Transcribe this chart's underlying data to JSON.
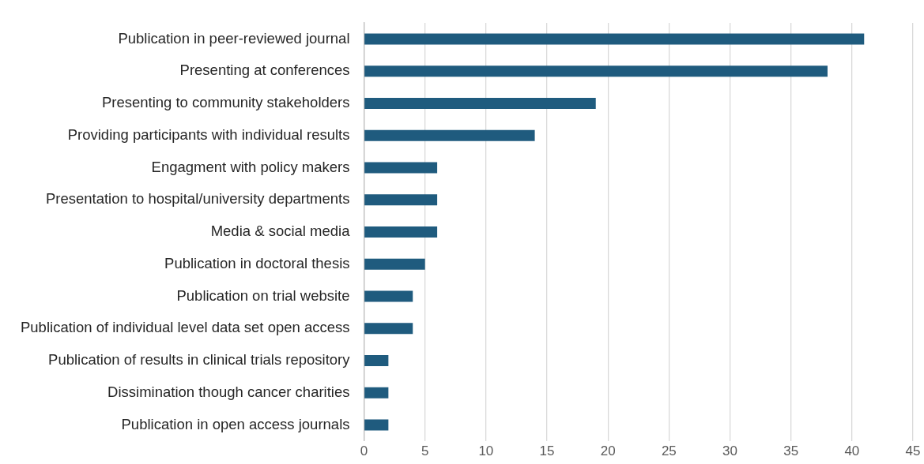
{
  "chart_data": {
    "type": "bar",
    "orientation": "horizontal",
    "categories": [
      "Publication in peer-reviewed journal",
      "Presenting at conferences",
      "Presenting to community stakeholders",
      "Providing participants with individual results",
      "Engagment with policy makers",
      "Presentation to hospital/university departments",
      "Media & social media",
      "Publication in doctoral thesis",
      "Publication on trial website",
      "Publication of individual level data set open access",
      "Publication of results in clinical trials repository",
      "Dissimination though cancer charities",
      "Publication in open access journals"
    ],
    "values": [
      41,
      38,
      19,
      14,
      6,
      6,
      6,
      5,
      4,
      4,
      2,
      2,
      2
    ],
    "color": "#1f5b7e",
    "xlim": [
      0,
      45
    ],
    "xticks": [
      0,
      5,
      10,
      15,
      20,
      25,
      30,
      35,
      40,
      45
    ],
    "grid": "x",
    "legend": false
  }
}
